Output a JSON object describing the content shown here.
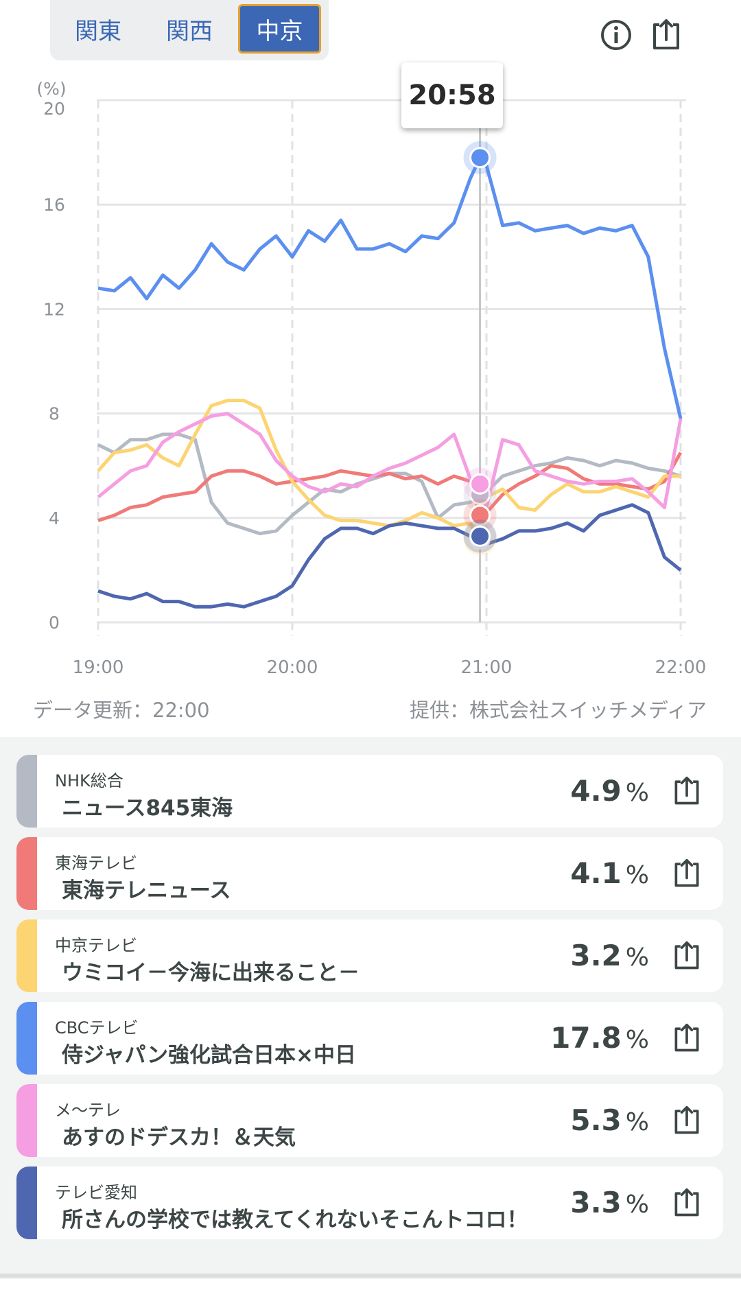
{
  "region_tabs": [
    {
      "label": "関東",
      "active": false
    },
    {
      "label": "関西",
      "active": false
    },
    {
      "label": "中京",
      "active": true
    }
  ],
  "header_icons": [
    "info-icon",
    "share-icon"
  ],
  "tooltip": {
    "time": "20:58"
  },
  "footer": {
    "updated": "データ更新：22:00",
    "provider": "提供：株式会社スイッチメディア"
  },
  "chart_data": {
    "type": "line",
    "ylabel": "(%)",
    "ylim": [
      0,
      20
    ],
    "yticks": [
      "0",
      "4",
      "8",
      "12",
      "16",
      "20"
    ],
    "xticks": [
      "19:00",
      "20:00",
      "21:00",
      "22:00"
    ],
    "grid": true,
    "x": [
      "19:00",
      "19:05",
      "19:10",
      "19:15",
      "19:20",
      "19:25",
      "19:30",
      "19:35",
      "19:40",
      "19:45",
      "19:50",
      "19:55",
      "20:00",
      "20:05",
      "20:10",
      "20:15",
      "20:20",
      "20:25",
      "20:30",
      "20:35",
      "20:40",
      "20:45",
      "20:50",
      "20:55",
      "20:58",
      "21:00",
      "21:05",
      "21:10",
      "21:15",
      "21:20",
      "21:25",
      "21:30",
      "21:35",
      "21:40",
      "21:45",
      "21:50",
      "21:55",
      "22:00"
    ],
    "highlight_x": "20:58",
    "series": [
      {
        "name": "NHK総合",
        "color": "#b4bac4",
        "values": [
          6.8,
          6.5,
          7.0,
          7.0,
          7.2,
          7.2,
          7.0,
          4.6,
          3.8,
          3.6,
          3.4,
          3.5,
          4.1,
          4.6,
          5.1,
          5.0,
          5.3,
          5.5,
          5.7,
          5.7,
          5.4,
          4.0,
          4.5,
          4.6,
          4.9,
          5.0,
          5.6,
          5.8,
          6.0,
          6.1,
          6.3,
          6.2,
          6.0,
          6.2,
          6.1,
          5.9,
          5.8,
          5.6
        ]
      },
      {
        "name": "東海テレビ",
        "color": "#f07a78",
        "values": [
          3.9,
          4.1,
          4.4,
          4.5,
          4.8,
          4.9,
          5.0,
          5.6,
          5.8,
          5.8,
          5.6,
          5.3,
          5.4,
          5.5,
          5.6,
          5.8,
          5.7,
          5.6,
          5.7,
          5.5,
          5.6,
          5.3,
          5.6,
          5.4,
          4.1,
          4.2,
          4.9,
          5.3,
          5.6,
          6.0,
          5.9,
          5.5,
          5.3,
          5.3,
          5.2,
          5.1,
          5.4,
          6.5
        ]
      },
      {
        "name": "中京テレビ",
        "color": "#fcd472",
        "values": [
          5.8,
          6.5,
          6.6,
          6.8,
          6.3,
          6.0,
          7.2,
          8.3,
          8.5,
          8.5,
          8.2,
          6.6,
          5.4,
          4.7,
          4.1,
          3.9,
          3.9,
          3.8,
          3.7,
          3.9,
          4.2,
          4.0,
          3.7,
          3.8,
          3.2,
          4.8,
          5.1,
          4.4,
          4.3,
          4.9,
          5.3,
          5.0,
          5.0,
          5.2,
          5.0,
          4.8,
          5.6,
          5.6
        ]
      },
      {
        "name": "CBCテレビ",
        "color": "#5b8ff0",
        "values": [
          12.8,
          12.7,
          13.2,
          12.4,
          13.3,
          12.8,
          13.5,
          14.5,
          13.8,
          13.5,
          14.3,
          14.8,
          14.0,
          15.0,
          14.6,
          15.4,
          14.3,
          14.3,
          14.5,
          14.2,
          14.8,
          14.7,
          15.3,
          17.0,
          17.8,
          17.5,
          15.2,
          15.3,
          15.0,
          15.1,
          15.2,
          14.9,
          15.1,
          15.0,
          15.2,
          14.0,
          10.5,
          7.8
        ]
      },
      {
        "name": "メ〜テレ",
        "color": "#f59ee2",
        "values": [
          4.8,
          5.3,
          5.8,
          6.0,
          6.9,
          7.3,
          7.6,
          7.9,
          8.0,
          7.6,
          7.2,
          6.2,
          5.6,
          5.2,
          5.0,
          5.3,
          5.2,
          5.6,
          5.9,
          6.1,
          6.4,
          6.7,
          7.2,
          5.5,
          5.3,
          4.4,
          7.0,
          6.8,
          5.8,
          5.6,
          5.4,
          5.3,
          5.4,
          5.4,
          5.5,
          5.0,
          4.4,
          7.8
        ]
      },
      {
        "name": "テレビ愛知",
        "color": "#4f67b0",
        "values": [
          1.2,
          1.0,
          0.9,
          1.1,
          0.8,
          0.8,
          0.6,
          0.6,
          0.7,
          0.6,
          0.8,
          1.0,
          1.4,
          2.4,
          3.2,
          3.6,
          3.6,
          3.4,
          3.7,
          3.8,
          3.7,
          3.6,
          3.6,
          3.3,
          3.3,
          3.0,
          3.2,
          3.5,
          3.5,
          3.6,
          3.8,
          3.5,
          4.1,
          4.3,
          4.5,
          4.2,
          2.5,
          2.0
        ]
      }
    ]
  },
  "programs": [
    {
      "channel": "NHK総合",
      "title": "ニュース845東海",
      "rating": "4.9",
      "unit": "%",
      "color": "#b4bac4"
    },
    {
      "channel": "東海テレビ",
      "title": "東海テレニュース",
      "rating": "4.1",
      "unit": "%",
      "color": "#f07a78"
    },
    {
      "channel": "中京テレビ",
      "title": "ウミコイ－今海に出来ること－",
      "rating": "3.2",
      "unit": "%",
      "color": "#fcd472"
    },
    {
      "channel": "CBCテレビ",
      "title": "侍ジャパン強化試合日本×中日",
      "rating": "17.8",
      "unit": "%",
      "color": "#5b8ff0"
    },
    {
      "channel": "メ〜テレ",
      "title": "あすのドデスカ！＆天気",
      "rating": "5.3",
      "unit": "%",
      "color": "#f59ee2"
    },
    {
      "channel": "テレビ愛知",
      "title": "所さんの学校では教えてくれないそこんトコロ！",
      "rating": "3.3",
      "unit": "%",
      "color": "#4f67b0"
    }
  ]
}
